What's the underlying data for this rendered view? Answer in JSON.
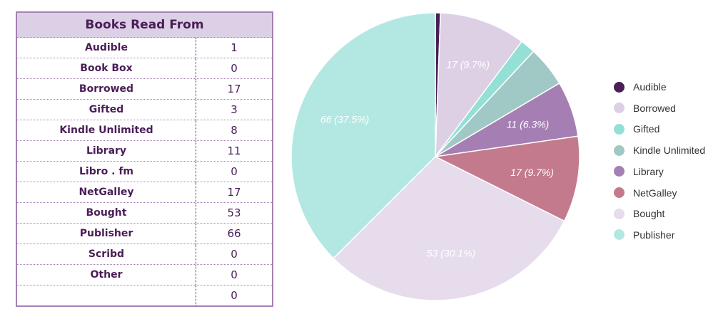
{
  "table": {
    "title": "Books Read From",
    "rows": [
      {
        "name": "Audible",
        "value": "1"
      },
      {
        "name": "Book Box",
        "value": "0"
      },
      {
        "name": "Borrowed",
        "value": "17"
      },
      {
        "name": "Gifted",
        "value": "3"
      },
      {
        "name": "Kindle Unlimited",
        "value": "8"
      },
      {
        "name": "Library",
        "value": "11"
      },
      {
        "name": "Libro . fm",
        "value": "0"
      },
      {
        "name": "NetGalley",
        "value": "17"
      },
      {
        "name": "Bought",
        "value": "53"
      },
      {
        "name": "Publisher",
        "value": "66"
      },
      {
        "name": "Scribd",
        "value": "0"
      },
      {
        "name": "Other",
        "value": "0"
      },
      {
        "name": "",
        "value": "0"
      }
    ]
  },
  "chart_data": {
    "type": "pie",
    "categories": [
      "Audible",
      "Borrowed",
      "Gifted",
      "Kindle Unlimited",
      "Library",
      "NetGalley",
      "Bought",
      "Publisher"
    ],
    "values": [
      1,
      17,
      3,
      8,
      11,
      17,
      53,
      66
    ],
    "colors": [
      "#4a1f55",
      "#ddd0e5",
      "#94e0d6",
      "#a0c8c4",
      "#a57fb3",
      "#c37a8c",
      "#e6dcec",
      "#b3e8e2"
    ],
    "data_labels": [
      "",
      "17 (9.7%)",
      "",
      "",
      "11 (6.3%)",
      "17 (9.7%)",
      "53 (30.1%)",
      "66 (37.5%)"
    ],
    "legend": "right"
  }
}
